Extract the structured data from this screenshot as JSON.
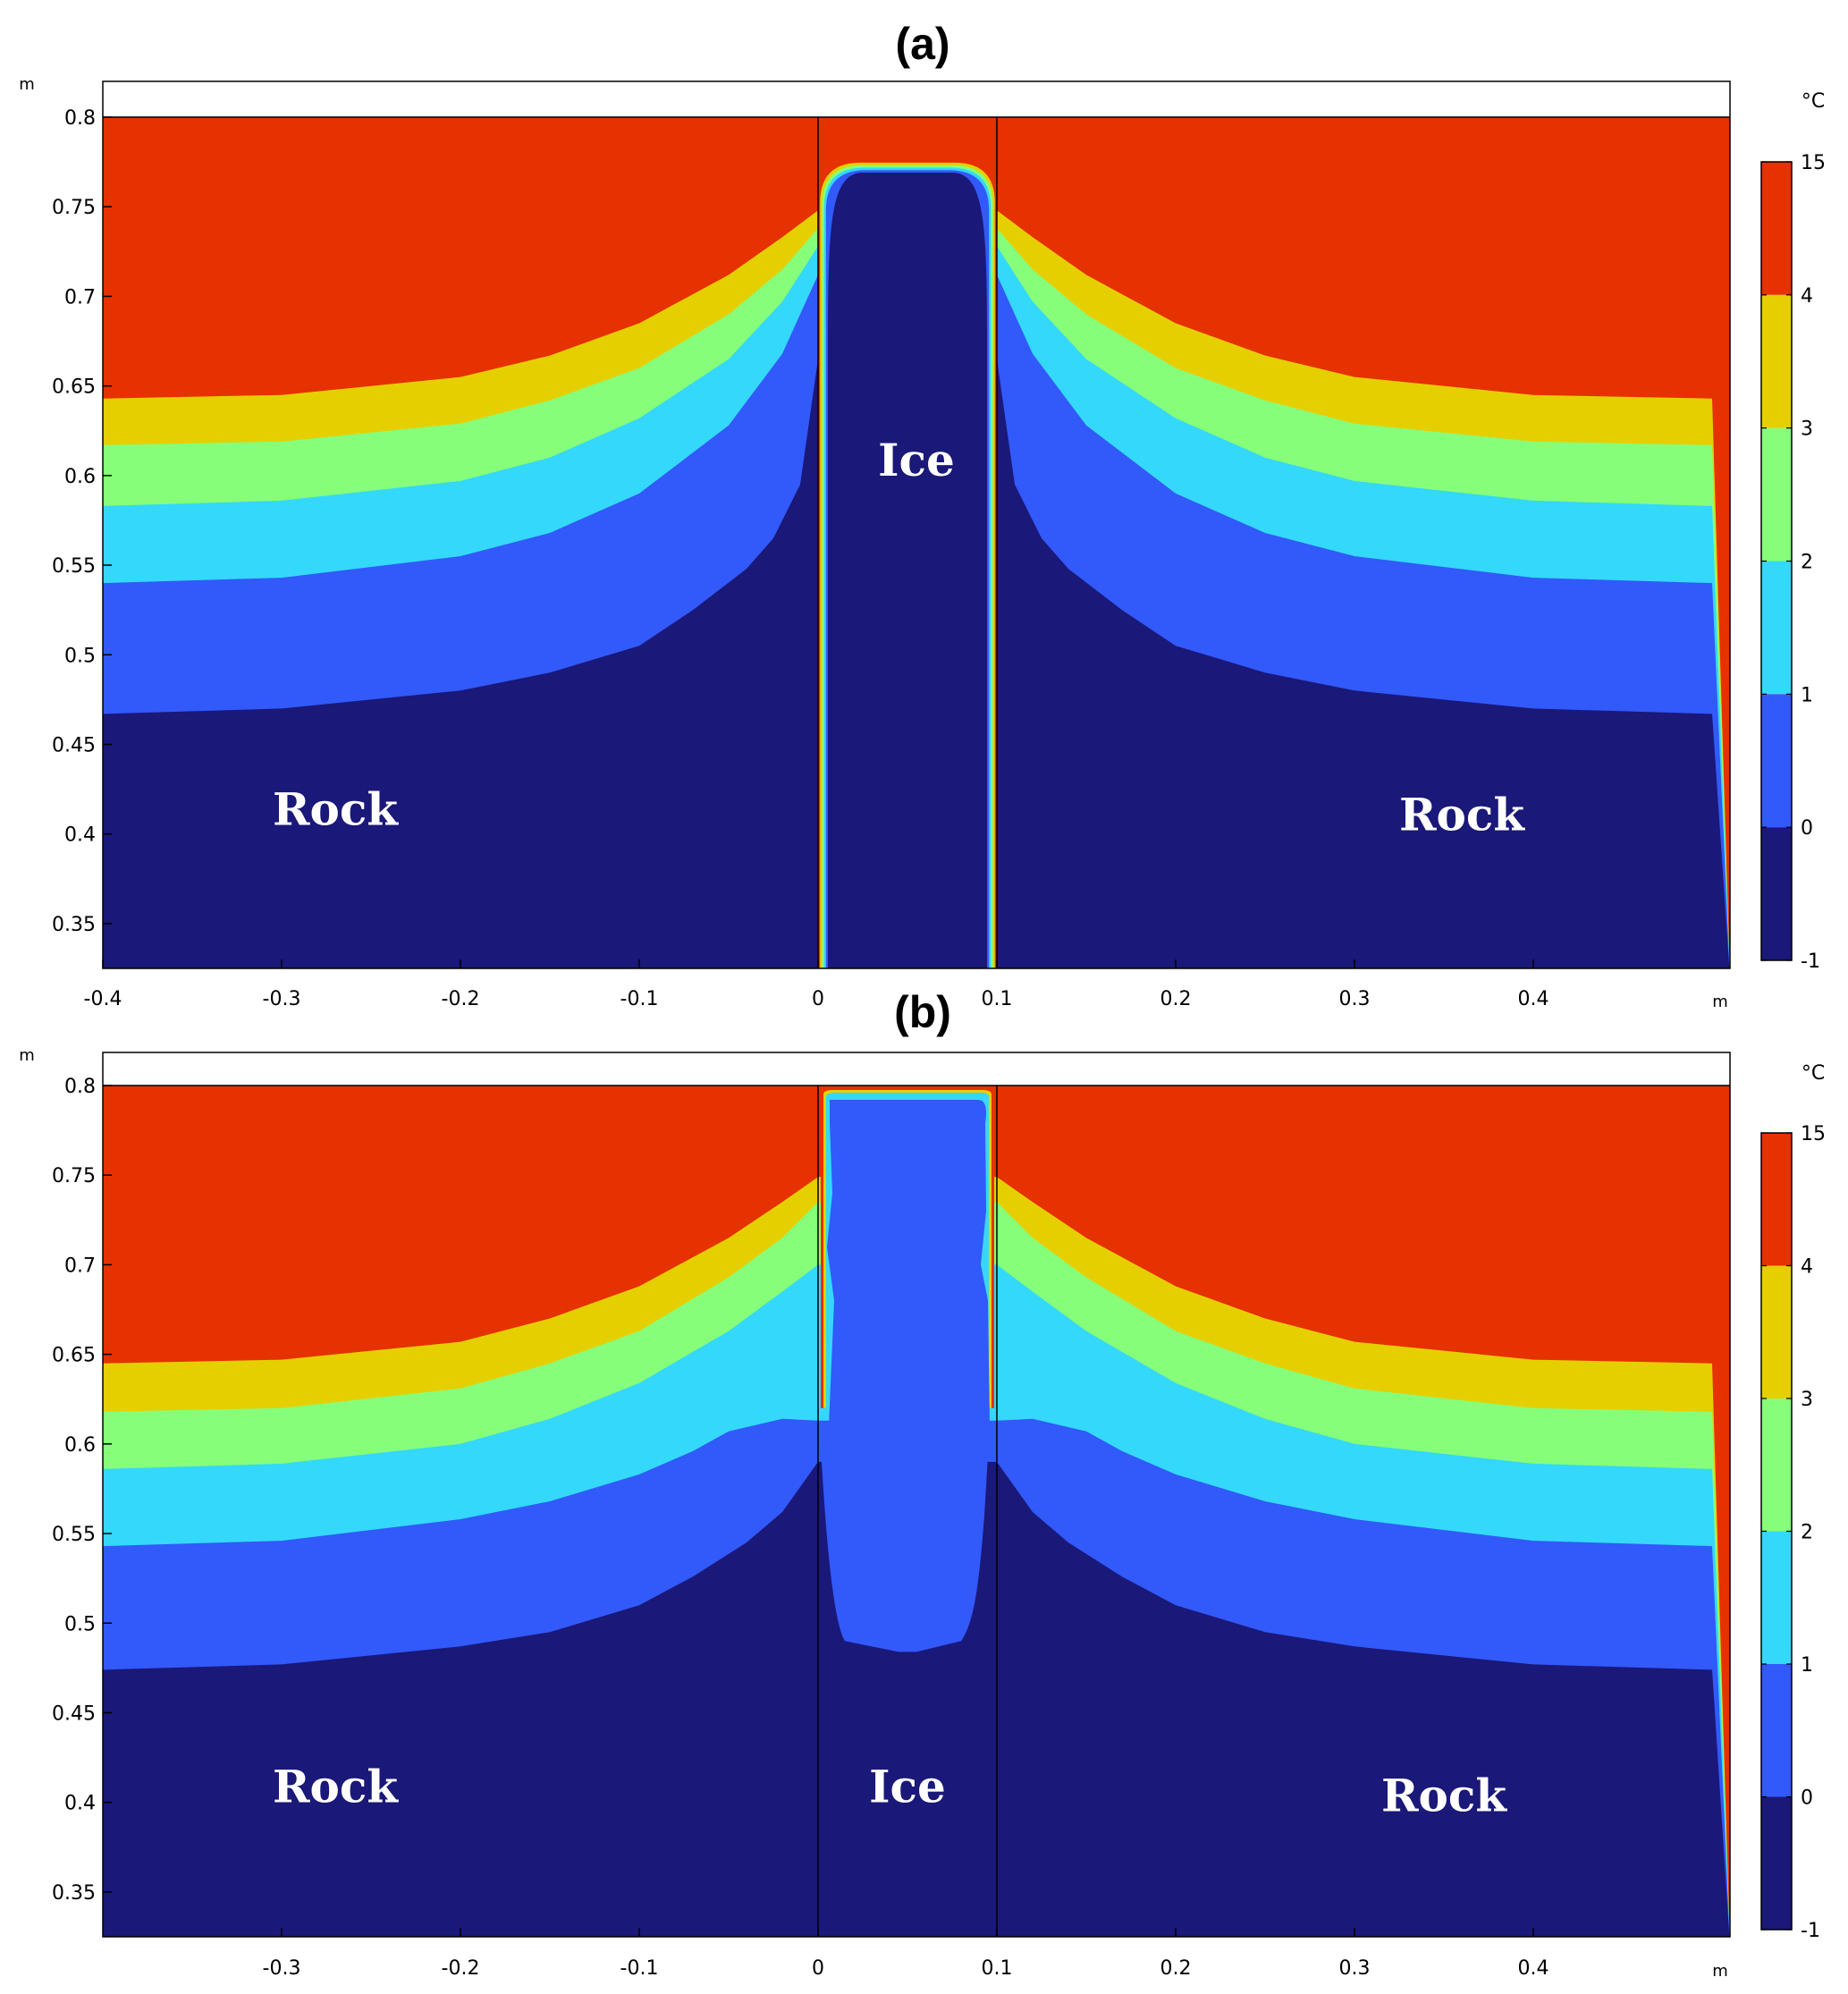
{
  "chart_data": [
    {
      "type": "heatmap",
      "panel_label": "(a)",
      "x_unit": "m",
      "y_unit": "m",
      "colorbar_unit": "°C",
      "xlim": [
        -0.4,
        0.51
      ],
      "ylim": [
        0.325,
        0.82
      ],
      "x_ticks": [
        "-0.4",
        "-0.3",
        "-0.2",
        "-0.1",
        "0",
        "0.1",
        "0.2",
        "0.3",
        "0.4"
      ],
      "y_ticks": [
        "0.8",
        "0.75",
        "0.7",
        "0.65",
        "0.6",
        "0.55",
        "0.5",
        "0.45",
        "0.4",
        "0.35"
      ],
      "colorbar_ticks": [
        "15",
        "4",
        "3",
        "2",
        "1",
        "0",
        "-1"
      ],
      "colorbar_levels": [
        {
          "from": 4,
          "to": 15,
          "color": "#e63100"
        },
        {
          "from": 3,
          "to": 4,
          "color": "#e6cf00"
        },
        {
          "from": 2,
          "to": 3,
          "color": "#86fe7a"
        },
        {
          "from": 1,
          "to": 2,
          "color": "#34d8fa"
        },
        {
          "from": 0,
          "to": 1,
          "color": "#3259fa"
        },
        {
          "from": -1,
          "to": 0,
          "color": "#1a1878"
        }
      ],
      "region_labels": [
        {
          "text": "Rock",
          "x": -0.27,
          "y": 0.405
        },
        {
          "text": "Ice",
          "x": 0.055,
          "y": 0.6
        },
        {
          "text": "Rock",
          "x": 0.36,
          "y": 0.402
        }
      ],
      "ice_column_x": [
        0,
        0.1
      ],
      "isotherm_boundaries": [
        {
          "below_color": "#e6cf00",
          "above_color": "#e63100",
          "points": [
            [
              -0.4,
              0.643
            ],
            [
              -0.3,
              0.645
            ],
            [
              -0.2,
              0.655
            ],
            [
              -0.15,
              0.667
            ],
            [
              -0.1,
              0.685
            ],
            [
              -0.05,
              0.712
            ],
            [
              -0.02,
              0.733
            ],
            [
              0,
              0.748
            ]
          ]
        },
        {
          "below_color": "#86fe7a",
          "above_color": "#e6cf00",
          "points": [
            [
              -0.4,
              0.617
            ],
            [
              -0.3,
              0.619
            ],
            [
              -0.2,
              0.629
            ],
            [
              -0.15,
              0.642
            ],
            [
              -0.1,
              0.66
            ],
            [
              -0.05,
              0.69
            ],
            [
              -0.02,
              0.715
            ],
            [
              0,
              0.738
            ]
          ]
        },
        {
          "below_color": "#34d8fa",
          "above_color": "#86fe7a",
          "points": [
            [
              -0.4,
              0.583
            ],
            [
              -0.3,
              0.586
            ],
            [
              -0.2,
              0.597
            ],
            [
              -0.15,
              0.61
            ],
            [
              -0.1,
              0.632
            ],
            [
              -0.05,
              0.665
            ],
            [
              -0.02,
              0.697
            ],
            [
              0,
              0.728
            ]
          ]
        },
        {
          "below_color": "#3259fa",
          "above_color": "#34d8fa",
          "points": [
            [
              -0.4,
              0.54
            ],
            [
              -0.3,
              0.543
            ],
            [
              -0.2,
              0.555
            ],
            [
              -0.15,
              0.568
            ],
            [
              -0.1,
              0.59
            ],
            [
              -0.05,
              0.628
            ],
            [
              -0.02,
              0.668
            ],
            [
              0,
              0.712
            ]
          ]
        },
        {
          "below_color": "#1a1878",
          "above_color": "#3259fa",
          "points": [
            [
              -0.4,
              0.467
            ],
            [
              -0.3,
              0.47
            ],
            [
              -0.2,
              0.48
            ],
            [
              -0.15,
              0.49
            ],
            [
              -0.1,
              0.505
            ],
            [
              -0.07,
              0.525
            ],
            [
              -0.04,
              0.548
            ],
            [
              -0.025,
              0.565
            ],
            [
              -0.01,
              0.595
            ],
            [
              0,
              0.665
            ]
          ]
        }
      ],
      "ice_top": 0.776
    },
    {
      "type": "heatmap",
      "panel_label": "(b)",
      "x_unit": "m",
      "y_unit": "m",
      "colorbar_unit": "°C",
      "xlim": [
        -0.4,
        0.51
      ],
      "ylim": [
        0.325,
        0.82
      ],
      "x_ticks": [
        "-0.3",
        "-0.2",
        "-0.1",
        "0",
        "0.1",
        "0.2",
        "0.3",
        "0.4"
      ],
      "y_ticks": [
        "0.8",
        "0.75",
        "0.7",
        "0.65",
        "0.6",
        "0.55",
        "0.5",
        "0.45",
        "0.4",
        "0.35"
      ],
      "colorbar_ticks": [
        "15",
        "4",
        "3",
        "2",
        "1",
        "0",
        "-1"
      ],
      "colorbar_levels": [
        {
          "from": 4,
          "to": 15,
          "color": "#e63100"
        },
        {
          "from": 3,
          "to": 4,
          "color": "#e6cf00"
        },
        {
          "from": 2,
          "to": 3,
          "color": "#86fe7a"
        },
        {
          "from": 1,
          "to": 2,
          "color": "#34d8fa"
        },
        {
          "from": 0,
          "to": 1,
          "color": "#3259fa"
        },
        {
          "from": -1,
          "to": 0,
          "color": "#1a1878"
        }
      ],
      "region_labels": [
        {
          "text": "Rock",
          "x": -0.27,
          "y": 0.4
        },
        {
          "text": "Ice",
          "x": 0.05,
          "y": 0.4
        },
        {
          "text": "Rock",
          "x": 0.35,
          "y": 0.395
        }
      ],
      "ice_column_x": [
        0,
        0.1
      ],
      "isotherm_boundaries": [
        {
          "below_color": "#e6cf00",
          "above_color": "#e63100",
          "points": [
            [
              -0.4,
              0.645
            ],
            [
              -0.3,
              0.647
            ],
            [
              -0.2,
              0.657
            ],
            [
              -0.15,
              0.67
            ],
            [
              -0.1,
              0.688
            ],
            [
              -0.05,
              0.715
            ],
            [
              -0.02,
              0.735
            ],
            [
              0,
              0.749
            ]
          ]
        },
        {
          "below_color": "#86fe7a",
          "above_color": "#e6cf00",
          "points": [
            [
              -0.4,
              0.618
            ],
            [
              -0.3,
              0.62
            ],
            [
              -0.2,
              0.631
            ],
            [
              -0.15,
              0.645
            ],
            [
              -0.1,
              0.663
            ],
            [
              -0.05,
              0.693
            ],
            [
              -0.02,
              0.715
            ],
            [
              0,
              0.735
            ]
          ]
        },
        {
          "below_color": "#34d8fa",
          "above_color": "#86fe7a",
          "points": [
            [
              -0.4,
              0.586
            ],
            [
              -0.3,
              0.589
            ],
            [
              -0.2,
              0.6
            ],
            [
              -0.15,
              0.614
            ],
            [
              -0.1,
              0.634
            ],
            [
              -0.05,
              0.663
            ],
            [
              -0.02,
              0.685
            ],
            [
              0,
              0.7
            ]
          ]
        },
        {
          "below_color": "#3259fa",
          "above_color": "#34d8fa",
          "points": [
            [
              -0.4,
              0.543
            ],
            [
              -0.3,
              0.546
            ],
            [
              -0.2,
              0.558
            ],
            [
              -0.15,
              0.568
            ],
            [
              -0.1,
              0.583
            ],
            [
              -0.07,
              0.596
            ],
            [
              -0.05,
              0.607
            ],
            [
              -0.02,
              0.614
            ],
            [
              0,
              0.613
            ]
          ]
        },
        {
          "below_color": "#1a1878",
          "above_color": "#3259fa",
          "points": [
            [
              -0.4,
              0.474
            ],
            [
              -0.3,
              0.477
            ],
            [
              -0.2,
              0.487
            ],
            [
              -0.15,
              0.495
            ],
            [
              -0.1,
              0.51
            ],
            [
              -0.07,
              0.526
            ],
            [
              -0.04,
              0.545
            ],
            [
              -0.02,
              0.562
            ],
            [
              0,
              0.59
            ]
          ]
        }
      ],
      "ice_bottom": 0.484
    }
  ]
}
